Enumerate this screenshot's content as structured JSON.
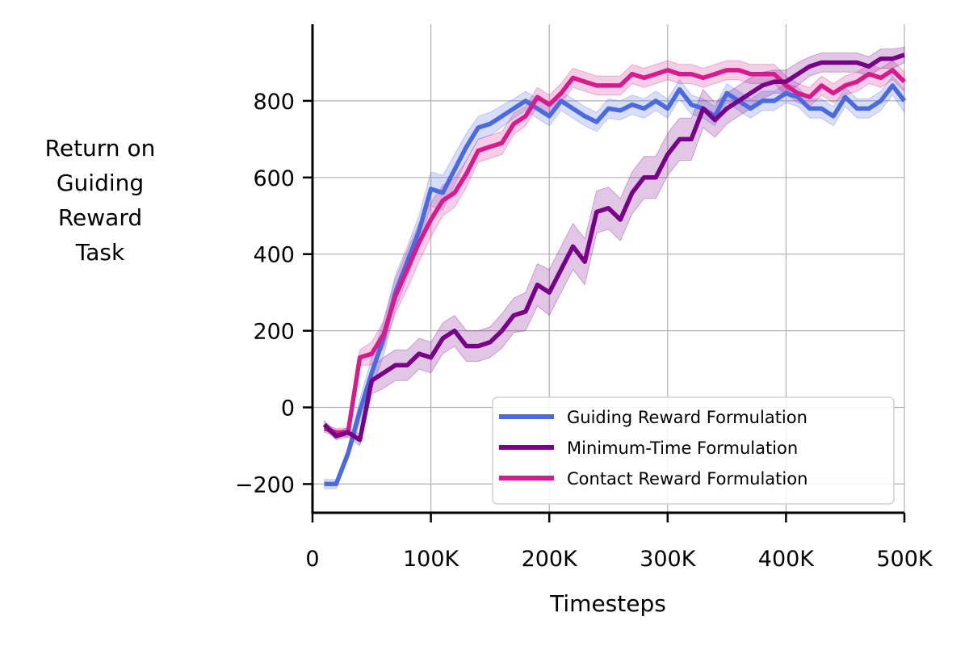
{
  "chart_data": {
    "type": "line",
    "title": "",
    "xlabel": "Timesteps",
    "ylabel_lines": [
      "Return on",
      "Guiding",
      "Reward",
      "Task"
    ],
    "xlim": [
      0,
      500000
    ],
    "ylim": [
      -275,
      1000
    ],
    "x_ticks": [
      0,
      100000,
      200000,
      300000,
      400000,
      500000
    ],
    "x_tick_labels": [
      "0",
      "100K",
      "200K",
      "300K",
      "400K",
      "500K"
    ],
    "y_ticks": [
      -200,
      0,
      200,
      400,
      600,
      800
    ],
    "y_tick_labels": [
      "−200",
      "0",
      "200",
      "400",
      "600",
      "800"
    ],
    "grid": true,
    "legend_position": "lower-right",
    "x": [
      10000,
      20000,
      30000,
      40000,
      50000,
      60000,
      70000,
      80000,
      90000,
      100000,
      110000,
      120000,
      130000,
      140000,
      150000,
      160000,
      170000,
      180000,
      190000,
      200000,
      210000,
      220000,
      230000,
      240000,
      250000,
      260000,
      270000,
      280000,
      290000,
      300000,
      310000,
      320000,
      330000,
      340000,
      350000,
      360000,
      370000,
      380000,
      390000,
      400000,
      410000,
      420000,
      430000,
      440000,
      450000,
      460000,
      470000,
      480000,
      490000,
      500000
    ],
    "series": [
      {
        "name": "Guiding Reward Formulation",
        "color": "#4c6ae0",
        "values": [
          -200,
          -200,
          -120,
          -10,
          90,
          180,
          300,
          380,
          460,
          570,
          560,
          620,
          680,
          730,
          740,
          760,
          780,
          800,
          780,
          760,
          800,
          780,
          760,
          745,
          780,
          775,
          790,
          780,
          800,
          780,
          830,
          790,
          780,
          760,
          820,
          800,
          780,
          800,
          800,
          820,
          810,
          780,
          780,
          760,
          810,
          780,
          780,
          800,
          840,
          800
        ],
        "band": [
          12,
          12,
          15,
          30,
          40,
          45,
          45,
          40,
          40,
          45,
          45,
          40,
          35,
          30,
          30,
          28,
          25,
          25,
          25,
          25,
          25,
          25,
          25,
          25,
          25,
          25,
          25,
          25,
          25,
          25,
          25,
          25,
          25,
          25,
          25,
          25,
          25,
          25,
          25,
          25,
          25,
          25,
          25,
          25,
          25,
          25,
          25,
          25,
          25,
          30
        ]
      },
      {
        "name": "Minimum-Time Formulation",
        "color": "#780088",
        "values": [
          -45,
          -75,
          -65,
          -85,
          70,
          90,
          110,
          110,
          140,
          130,
          180,
          200,
          160,
          160,
          170,
          200,
          240,
          250,
          320,
          300,
          360,
          420,
          380,
          510,
          520,
          490,
          560,
          600,
          600,
          660,
          700,
          700,
          780,
          750,
          780,
          800,
          820,
          840,
          850,
          850,
          870,
          890,
          900,
          900,
          900,
          900,
          890,
          910,
          910,
          920
        ],
        "band": [
          10,
          10,
          12,
          15,
          35,
          40,
          40,
          40,
          40,
          40,
          40,
          40,
          40,
          40,
          40,
          45,
          45,
          50,
          55,
          60,
          60,
          60,
          60,
          55,
          55,
          55,
          55,
          55,
          55,
          55,
          55,
          55,
          50,
          45,
          40,
          40,
          40,
          35,
          30,
          30,
          30,
          25,
          25,
          25,
          25,
          25,
          25,
          25,
          25,
          20
        ]
      },
      {
        "name": "Contact Reward Formulation",
        "color": "#d81b8c",
        "values": [
          -55,
          -65,
          -65,
          130,
          140,
          190,
          290,
          360,
          430,
          490,
          540,
          560,
          610,
          670,
          680,
          690,
          740,
          760,
          810,
          790,
          820,
          860,
          850,
          840,
          840,
          840,
          870,
          860,
          870,
          880,
          870,
          870,
          860,
          870,
          880,
          880,
          870,
          870,
          870,
          840,
          820,
          810,
          840,
          820,
          840,
          850,
          870,
          860,
          880,
          850
        ],
        "band": [
          10,
          10,
          12,
          20,
          30,
          35,
          45,
          50,
          50,
          45,
          40,
          38,
          35,
          30,
          30,
          30,
          28,
          25,
          25,
          25,
          25,
          25,
          25,
          25,
          25,
          25,
          25,
          25,
          25,
          25,
          25,
          25,
          25,
          25,
          25,
          25,
          25,
          25,
          25,
          25,
          25,
          25,
          25,
          25,
          25,
          25,
          25,
          25,
          25,
          25
        ]
      }
    ]
  }
}
